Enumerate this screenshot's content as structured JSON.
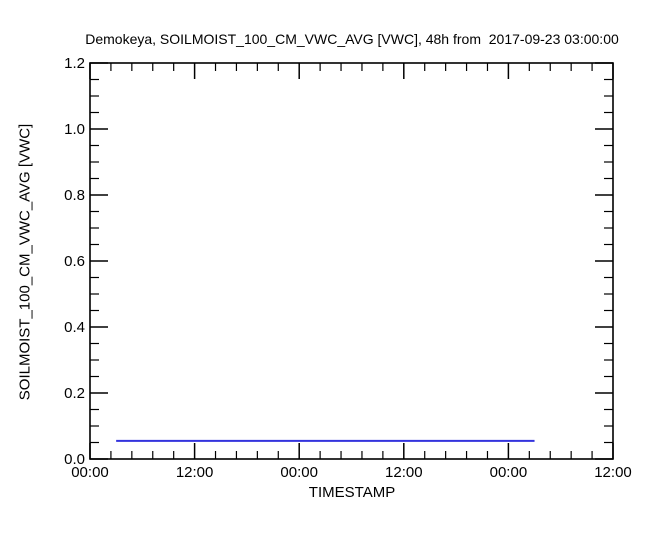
{
  "page": {
    "background": "#ffffff",
    "text_color": "#000000"
  },
  "chart_data": {
    "type": "line",
    "title": "Demokeya, SOILMOIST_100_CM_VWC_AVG [VWC], 48h from  2017-09-23 03:00:00",
    "station": "Demokeya",
    "variable": "SOILMOIST_100_CM_VWC_AVG",
    "units": "VWC",
    "window_hours": 48,
    "window_start": "2017-09-23 03:00:00",
    "xlabel": "TIMESTAMP",
    "ylabel": "SOILMOIST_100_CM_VWC_AVG [VWC]",
    "ylim": [
      0.0,
      1.2
    ],
    "y_major_step": 0.2,
    "y_minor_step": 0.05,
    "y_tick_labels": [
      "0.0",
      "0.2",
      "0.4",
      "0.6",
      "0.8",
      "1.0",
      "1.2"
    ],
    "xlim_hours": [
      0,
      60
    ],
    "x_major_tick_hours": [
      0,
      12,
      24,
      36,
      48,
      60
    ],
    "x_tick_labels": [
      "00:00",
      "12:00",
      "00:00",
      "12:00",
      "00:00",
      "12:00"
    ],
    "x_minor_step_hours": 2.4,
    "grid": false,
    "legend": "none",
    "axis_color": "#000000",
    "series": [
      {
        "name": "SOILMOIST_100_CM_VWC_AVG",
        "color": "#3333dd",
        "line_style": "solid",
        "x_hours": [
          3,
          51
        ],
        "values": [
          0.055,
          0.055
        ]
      }
    ]
  }
}
